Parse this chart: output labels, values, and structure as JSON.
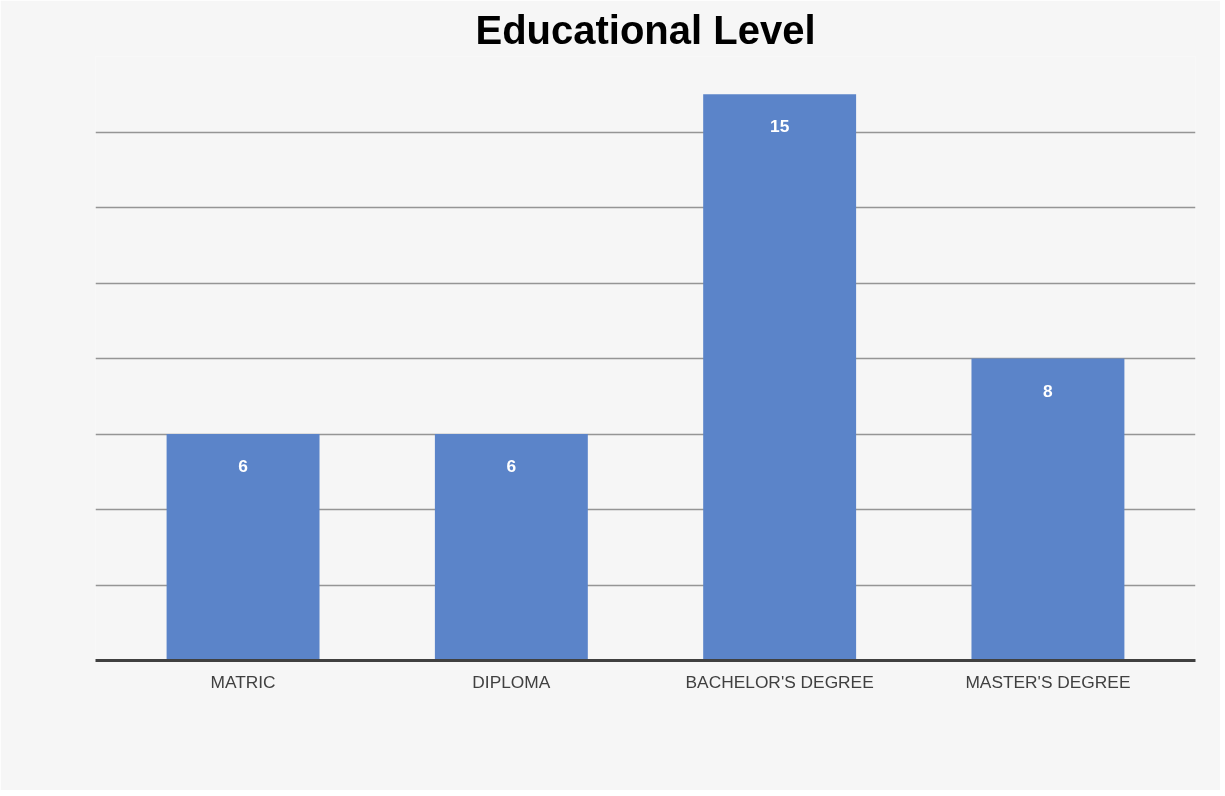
{
  "chart_data": {
    "type": "bar",
    "title": "Educational Level",
    "categories": [
      "MATRIC",
      "DIPLOMA",
      "BACHELOR'S DEGREE",
      "MASTER'S DEGREE"
    ],
    "values": [
      6,
      6,
      15,
      8
    ],
    "color": "#5b84c9",
    "ylim": [
      0,
      16
    ],
    "yticks": [
      {
        "value": 0,
        "label": null
      },
      {
        "value": 2,
        "label": null
      },
      {
        "value": 4,
        "label": null
      },
      {
        "value": 6,
        "label": null
      },
      {
        "value": 8,
        "label": null
      },
      {
        "value": 10,
        "label": null
      },
      {
        "value": 12,
        "label": null
      },
      {
        "value": 14,
        "label": null
      },
      {
        "value": 16,
        "label": null
      }
    ],
    "tick_labels": "x",
    "grid": "y",
    "data_labels": true
  }
}
